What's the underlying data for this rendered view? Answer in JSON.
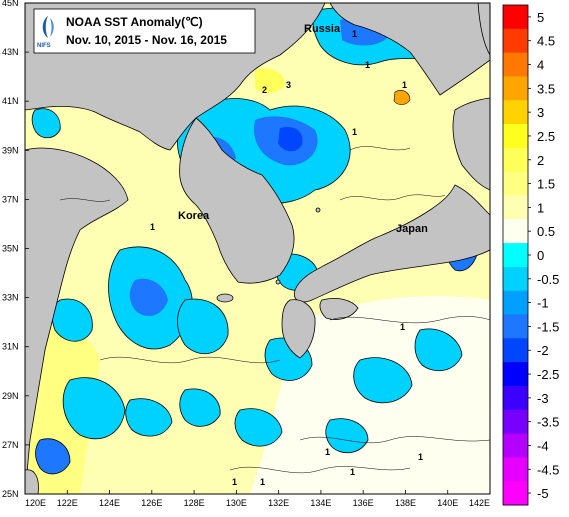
{
  "title": {
    "line1": "NOAA SST Anomaly(℃)",
    "line2": "Nov. 10, 2015 - Nov. 16, 2015",
    "logo_text": "NIFS"
  },
  "map": {
    "x_ticks": [
      "120E",
      "122E",
      "124E",
      "126E",
      "128E",
      "130E",
      "132E",
      "134E",
      "136E",
      "138E",
      "140E",
      "142E"
    ],
    "y_ticks": [
      "45N",
      "43N",
      "41N",
      "39N",
      "37N",
      "35N",
      "33N",
      "31N",
      "29N",
      "27N",
      "25N"
    ],
    "place_labels": {
      "russia": "Russia",
      "korea": "Korea",
      "japan": "Japan"
    },
    "contour_labels": [
      "1",
      "3",
      "2",
      "1",
      "1",
      "1",
      "1",
      "1",
      "1",
      "1",
      "1",
      "1",
      "1"
    ],
    "land_color": "#c3c3c3"
  },
  "colorbar": {
    "labels": [
      "5",
      "4.5",
      "4",
      "3.5",
      "3",
      "2.5",
      "2",
      "1.5",
      "1",
      "0.5",
      "0",
      "-0.5",
      "-1",
      "-1.5",
      "-2",
      "-2.5",
      "-3",
      "-3.5",
      "-4",
      "-4.5",
      "-5"
    ],
    "colors": [
      "#ff0000",
      "#ff3c00",
      "#ff7800",
      "#ffa500",
      "#ffd200",
      "#ffff1e",
      "#ffff5a",
      "#ffff82",
      "#ffffb4",
      "#fffff0",
      "#00ffff",
      "#00d2ff",
      "#00a0ff",
      "#1e78ff",
      "#0046ff",
      "#0000ff",
      "#3c00ff",
      "#7800ff",
      "#b400ff",
      "#e600ff",
      "#ff00ff"
    ]
  }
}
